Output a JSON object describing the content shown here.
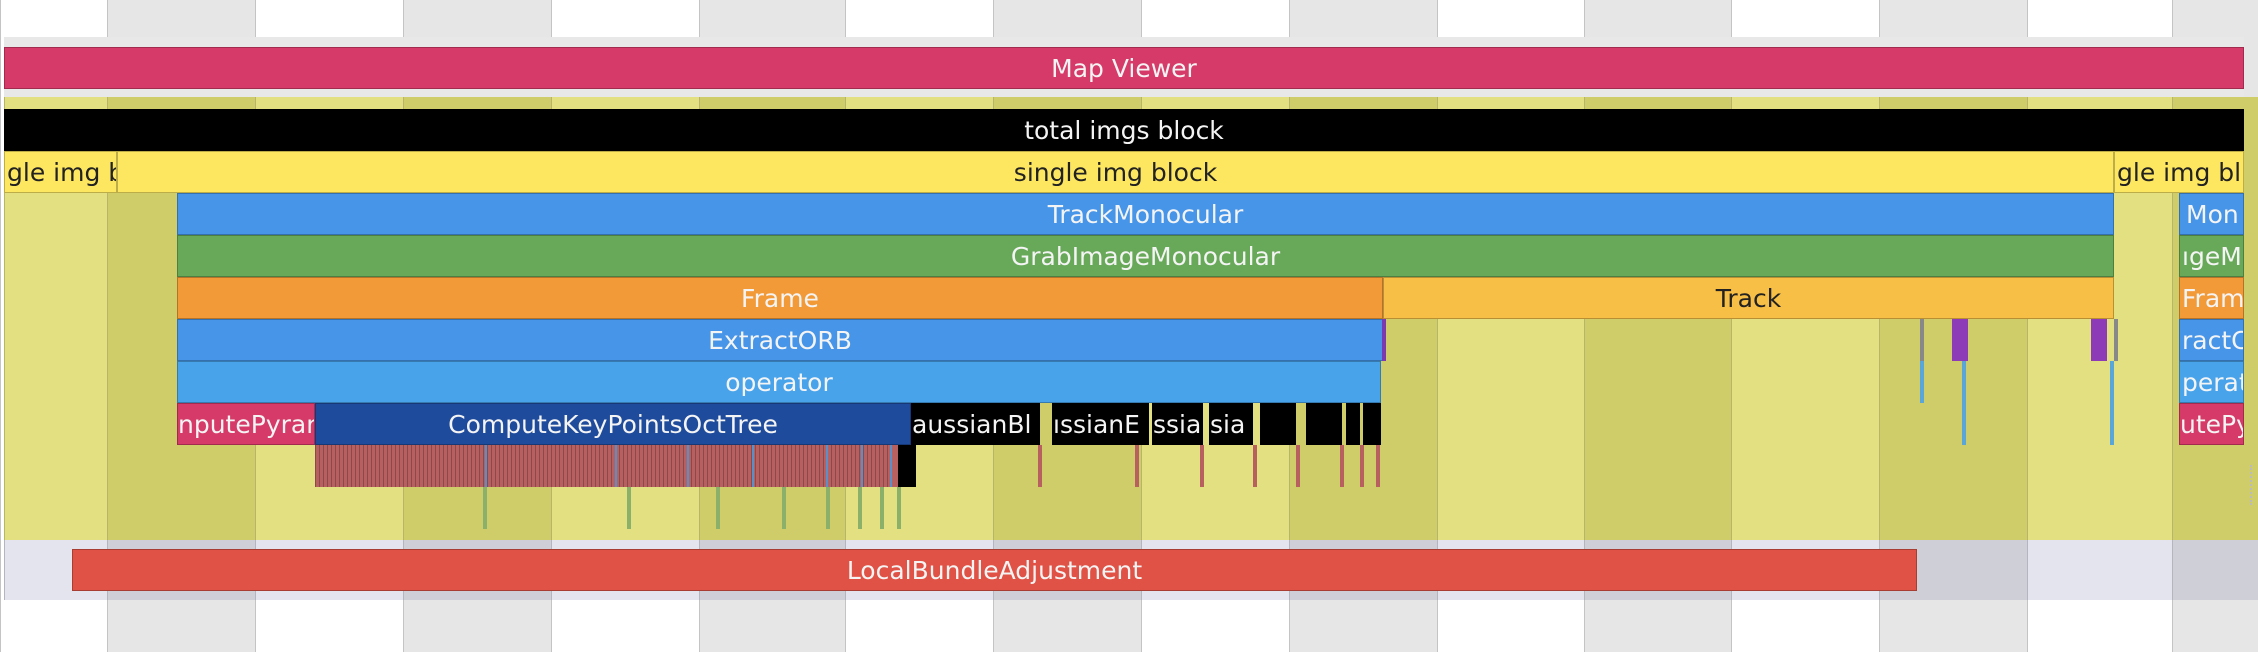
{
  "colors": {
    "map_viewer": "#d63a68",
    "total_imgs": "#000000",
    "single_img": "#fde760",
    "track_monocular": "#4695e8",
    "grab_image": "#67a959",
    "frame": "#f29a38",
    "track": "#f7bf45",
    "extract_orb": "#4695e8",
    "operator": "#48a3ea",
    "compute_pyramid": "#d63a68",
    "compute_keypoints": "#1f4b9c",
    "gaussian": "#000000",
    "local_ba": "#e05245",
    "thread_bg": "#e2e080",
    "thread_bg_alt": "#cfcc6a",
    "ba_lane": "#e4e4ee"
  },
  "lanes": {
    "map_viewer": {
      "label": "Map Viewer"
    },
    "total_imgs": {
      "label": "total imgs block"
    },
    "single_img_left": {
      "label": "gle img b"
    },
    "single_img_main": {
      "label": "single img block"
    },
    "single_img_right": {
      "label": "gle img bl"
    },
    "track_monocular": {
      "label": "TrackMonocular"
    },
    "track_monocular_right": {
      "label": "Mon"
    },
    "grab_image": {
      "label": "GrabImageMonocular"
    },
    "grab_image_right": {
      "label": "ıgeM"
    },
    "frame": {
      "label": "Frame"
    },
    "frame_right": {
      "label": "Fram"
    },
    "track": {
      "label": "Track"
    },
    "extract_orb": {
      "label": "ExtractORB"
    },
    "extract_orb_right": {
      "label": "ractC"
    },
    "operator": {
      "label": "operator"
    },
    "operator_right": {
      "label": "perat"
    },
    "compute_pyramid": {
      "label": "nputePyran"
    },
    "compute_pyramid_right": {
      "label": "utePy"
    },
    "compute_keypoints": {
      "label": "ComputeKeyPointsOctTree"
    },
    "gaussian_1": {
      "label": "aussianBl"
    },
    "gaussian_2": {
      "label": "ıssianE"
    },
    "gaussian_3": {
      "label": "ssiar"
    },
    "gaussian_4": {
      "label": "sia"
    },
    "local_ba": {
      "label": "LocalBundleAdjustment"
    }
  }
}
